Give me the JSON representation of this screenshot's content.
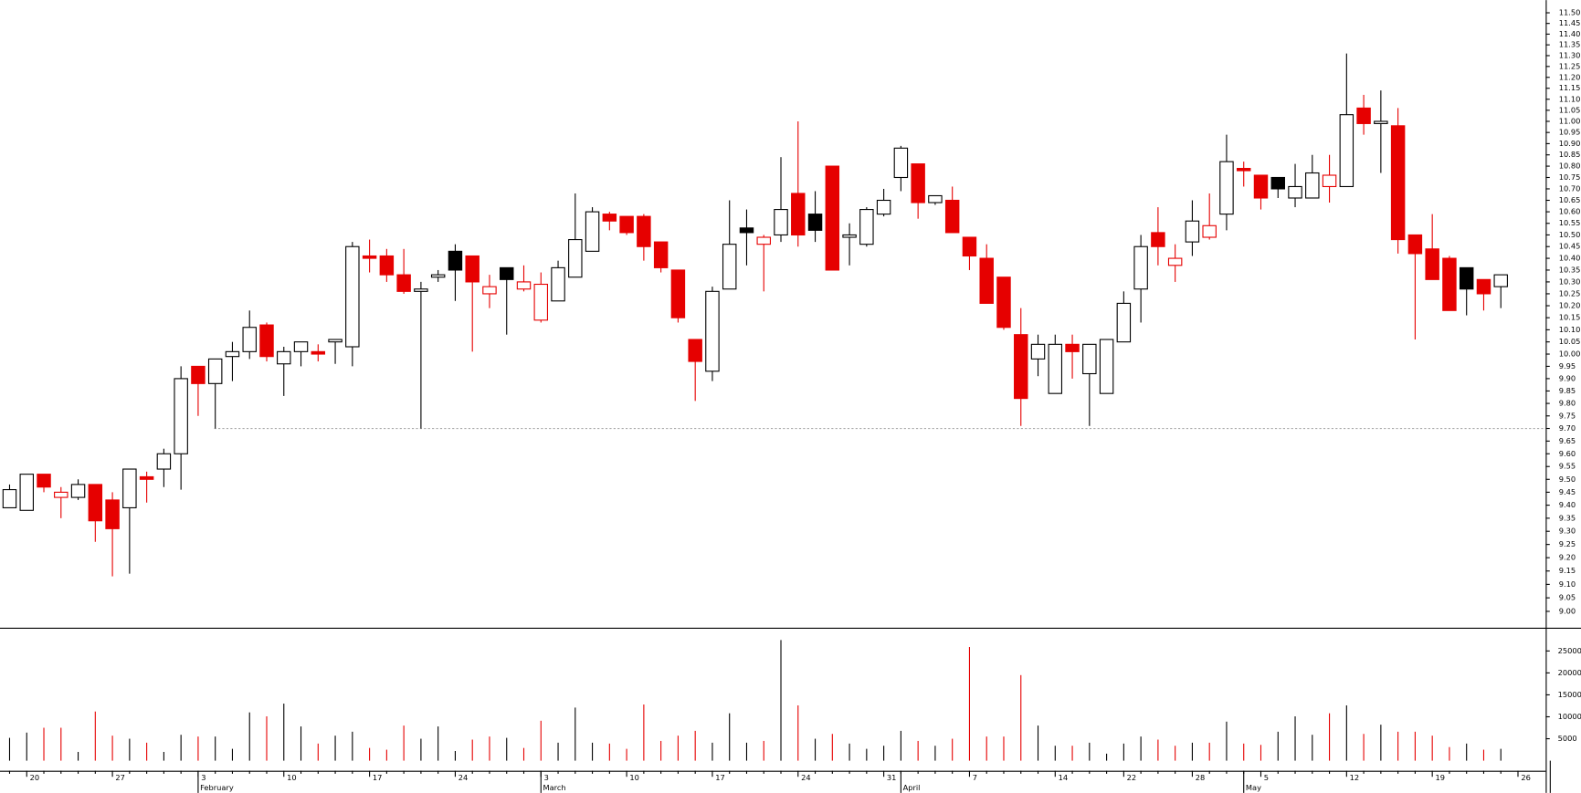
{
  "chart_data": {
    "type": "candlestick",
    "log_scale": true,
    "categories": [
      null,
      "20",
      null,
      null,
      null,
      null,
      "27",
      null,
      null,
      null,
      null,
      "3",
      null,
      null,
      null,
      null,
      "10",
      null,
      null,
      null,
      null,
      "17",
      null,
      null,
      null,
      null,
      "24",
      null,
      null,
      null,
      null,
      "3",
      null,
      null,
      null,
      null,
      "10",
      null,
      null,
      null,
      null,
      "17",
      null,
      null,
      null,
      null,
      "24",
      null,
      null,
      null,
      null,
      "31",
      null,
      null,
      null,
      null,
      "7",
      null,
      null,
      null,
      null,
      "14",
      null,
      null,
      null,
      "22",
      null,
      null,
      null,
      "28",
      null,
      null,
      null,
      "5",
      null,
      null,
      null,
      null,
      "12",
      null,
      null,
      null,
      null,
      "19",
      null,
      null,
      null,
      null,
      "26"
    ],
    "months": [
      null,
      null,
      null,
      null,
      null,
      null,
      null,
      null,
      null,
      null,
      null,
      "February",
      null,
      null,
      null,
      null,
      null,
      null,
      null,
      null,
      null,
      null,
      null,
      null,
      null,
      null,
      null,
      null,
      null,
      null,
      null,
      "March",
      null,
      null,
      null,
      null,
      null,
      null,
      null,
      null,
      null,
      null,
      null,
      null,
      null,
      null,
      null,
      null,
      null,
      null,
      null,
      null,
      "April",
      null,
      null,
      null,
      null,
      null,
      null,
      null,
      null,
      null,
      null,
      null,
      null,
      null,
      null,
      null,
      null,
      null,
      null,
      null,
      "May",
      null,
      null,
      null,
      null,
      null,
      null,
      null,
      null,
      null,
      null,
      null,
      null,
      null,
      null,
      null,
      null
    ],
    "open": [
      9.39,
      9.38,
      9.52,
      9.43,
      9.43,
      9.48,
      9.42,
      9.39,
      9.51,
      9.54,
      9.6,
      9.95,
      9.88,
      9.99,
      10.01,
      10.12,
      9.96,
      10.01,
      10.01,
      10.05,
      10.03,
      10.41,
      10.41,
      10.33,
      10.26,
      10.32,
      10.43,
      10.41,
      10.25,
      10.36,
      10.27,
      10.14,
      10.22,
      10.32,
      10.43,
      10.59,
      10.58,
      10.58,
      10.47,
      10.35,
      10.06,
      9.93,
      10.27,
      10.53,
      10.46,
      10.5,
      10.68,
      10.59,
      10.8,
      10.49,
      10.46,
      10.59,
      10.75,
      10.81,
      10.64,
      10.65,
      10.49,
      10.4,
      10.32,
      10.08,
      9.98,
      9.84,
      10.04,
      9.92,
      9.84,
      10.05,
      10.27,
      10.51,
      10.37,
      10.47,
      10.49,
      10.59,
      10.79,
      10.76,
      10.75,
      10.66,
      10.66,
      10.71,
      10.71,
      11.06,
      10.99,
      10.98,
      10.5,
      10.44,
      10.4,
      10.36,
      10.31,
      10.28,
      null
    ],
    "high": [
      9.48,
      9.52,
      9.52,
      9.47,
      9.5,
      9.48,
      9.45,
      9.54,
      9.53,
      9.62,
      9.95,
      9.95,
      9.98,
      10.05,
      10.18,
      10.13,
      10.03,
      10.05,
      10.04,
      10.06,
      10.47,
      10.48,
      10.44,
      10.44,
      10.3,
      10.35,
      10.46,
      10.41,
      10.33,
      10.36,
      10.37,
      10.34,
      10.39,
      10.68,
      10.62,
      10.6,
      10.58,
      10.59,
      10.47,
      10.35,
      10.06,
      10.28,
      10.65,
      10.61,
      10.5,
      10.84,
      11.0,
      10.69,
      10.8,
      10.55,
      10.62,
      10.7,
      10.89,
      10.81,
      10.67,
      10.71,
      10.49,
      10.46,
      10.32,
      10.19,
      10.08,
      10.08,
      10.08,
      10.04,
      10.06,
      10.26,
      10.5,
      10.62,
      10.46,
      10.65,
      10.68,
      10.94,
      10.82,
      10.76,
      10.75,
      10.81,
      10.85,
      10.85,
      11.31,
      11.12,
      11.14,
      11.06,
      10.5,
      10.59,
      10.41,
      10.36,
      10.31,
      10.33,
      null
    ],
    "low": [
      9.39,
      9.38,
      9.45,
      9.35,
      9.42,
      9.26,
      9.13,
      9.14,
      9.41,
      9.47,
      9.46,
      9.75,
      9.7,
      9.89,
      9.98,
      9.97,
      9.83,
      9.95,
      9.97,
      9.96,
      9.95,
      10.34,
      10.3,
      10.25,
      9.7,
      10.3,
      10.22,
      10.01,
      10.19,
      10.08,
      10.26,
      10.13,
      10.22,
      10.32,
      10.43,
      10.52,
      10.5,
      10.39,
      10.34,
      10.13,
      9.81,
      9.89,
      10.27,
      10.37,
      10.26,
      10.47,
      10.45,
      10.47,
      10.35,
      10.37,
      10.45,
      10.58,
      10.69,
      10.57,
      10.63,
      10.51,
      10.35,
      10.21,
      10.1,
      9.71,
      9.91,
      9.84,
      9.9,
      9.71,
      9.84,
      10.05,
      10.13,
      10.37,
      10.3,
      10.41,
      10.48,
      10.52,
      10.71,
      10.61,
      10.66,
      10.62,
      10.66,
      10.64,
      10.71,
      10.94,
      10.77,
      10.42,
      10.06,
      10.31,
      10.18,
      10.16,
      10.18,
      10.19,
      null
    ],
    "close": [
      9.46,
      9.52,
      9.47,
      9.45,
      9.48,
      9.34,
      9.31,
      9.54,
      9.5,
      9.6,
      9.9,
      9.88,
      9.98,
      10.01,
      10.11,
      9.99,
      10.01,
      10.05,
      10.0,
      10.06,
      10.45,
      10.4,
      10.33,
      10.26,
      10.27,
      10.33,
      10.35,
      10.3,
      10.28,
      10.31,
      10.3,
      10.29,
      10.36,
      10.48,
      10.6,
      10.56,
      10.51,
      10.45,
      10.36,
      10.15,
      9.97,
      10.26,
      10.46,
      10.51,
      10.49,
      10.61,
      10.5,
      10.52,
      10.35,
      10.5,
      10.61,
      10.65,
      10.88,
      10.64,
      10.67,
      10.51,
      10.41,
      10.21,
      10.11,
      9.82,
      10.04,
      10.04,
      10.01,
      10.04,
      10.06,
      10.21,
      10.45,
      10.45,
      10.4,
      10.56,
      10.54,
      10.82,
      10.78,
      10.66,
      10.7,
      10.71,
      10.77,
      10.76,
      11.03,
      10.99,
      11.0,
      10.48,
      10.42,
      10.31,
      10.18,
      10.27,
      10.25,
      10.33,
      null
    ],
    "colors": [
      "#000000",
      "#000000",
      "#e60000",
      "#e60000",
      "#000000",
      "#e60000",
      "#e60000",
      "#000000",
      "#e60000",
      "#000000",
      "#000000",
      "#e60000",
      "#000000",
      "#000000",
      "#000000",
      "#e60000",
      "#000000",
      "#000000",
      "#e60000",
      "#000000",
      "#000000",
      "#e60000",
      "#e60000",
      "#e60000",
      "#000000",
      "#000000",
      "#000000",
      "#e60000",
      "#e60000",
      "#000000",
      "#e60000",
      "#e60000",
      "#000000",
      "#000000",
      "#000000",
      "#e60000",
      "#e60000",
      "#e60000",
      "#e60000",
      "#e60000",
      "#e60000",
      "#000000",
      "#000000",
      "#000000",
      "#e60000",
      "#000000",
      "#e60000",
      "#000000",
      "#e60000",
      "#000000",
      "#000000",
      "#000000",
      "#000000",
      "#e60000",
      "#000000",
      "#e60000",
      "#e60000",
      "#e60000",
      "#e60000",
      "#e60000",
      "#000000",
      "#000000",
      "#e60000",
      "#000000",
      "#000000",
      "#000000",
      "#000000",
      "#e60000",
      "#e60000",
      "#000000",
      "#e60000",
      "#000000",
      "#e60000",
      "#e60000",
      "#000000",
      "#000000",
      "#000000",
      "#e60000",
      "#000000",
      "#e60000",
      "#000000",
      "#e60000",
      "#e60000",
      "#e60000",
      "#e60000",
      "#000000",
      "#e60000",
      "#000000",
      null
    ],
    "hline": 9.7,
    "ylim": [
      8.94,
      11.56
    ],
    "yticks": [
      {
        "value": 9,
        "label": "9.00"
      },
      9.05,
      {
        "value": 9.1,
        "label": "9.10"
      },
      9.15,
      {
        "value": 9.2,
        "label": "9.20"
      },
      9.25,
      {
        "value": 9.3,
        "label": "9.30"
      },
      9.35,
      {
        "value": 9.4,
        "label": "9.40"
      },
      9.45,
      {
        "value": 9.5,
        "label": "9.50"
      },
      9.55,
      {
        "value": 9.6,
        "label": "9.60"
      },
      9.65,
      {
        "value": 9.7,
        "label": "9.70"
      },
      9.75,
      {
        "value": 9.8,
        "label": "9.80"
      },
      9.85,
      {
        "value": 9.9,
        "label": "9.90"
      },
      9.95,
      {
        "value": 10,
        "label": "10.00"
      },
      10.05,
      {
        "value": 10.1,
        "label": "10.10"
      },
      10.15,
      {
        "value": 10.2,
        "label": "10.20"
      },
      10.25,
      {
        "value": 10.3,
        "label": "10.30"
      },
      10.35,
      {
        "value": 10.4,
        "label": "10.40"
      },
      10.45,
      {
        "value": 10.5,
        "label": "10.50"
      },
      10.55,
      {
        "value": 10.6,
        "label": "10.60"
      },
      10.65,
      {
        "value": 10.7,
        "label": "10.70"
      },
      10.75,
      {
        "value": 10.8,
        "label": "10.80"
      },
      10.85,
      {
        "value": 10.9,
        "label": "10.90"
      },
      10.95,
      {
        "value": 11,
        "label": "11.00"
      },
      11.05,
      {
        "value": 11.1,
        "label": "11.10"
      },
      11.15,
      {
        "value": 11.2,
        "label": "11.20"
      },
      11.25,
      {
        "value": 11.3,
        "label": "11.30"
      },
      11.35,
      {
        "value": 11.4,
        "label": "11.40"
      },
      11.45,
      {
        "value": 11.5,
        "label": "11.50"
      }
    ],
    "volume": {
      "values": [
        5200,
        6400,
        7500,
        7500,
        2000,
        11200,
        5700,
        5000,
        4100,
        2000,
        5900,
        5500,
        5500,
        2700,
        11000,
        10100,
        13000,
        7800,
        3900,
        5700,
        6600,
        2900,
        2500,
        8000,
        5000,
        7800,
        2200,
        4800,
        5500,
        5200,
        2900,
        9100,
        4100,
        12100,
        4100,
        3900,
        2700,
        12800,
        4500,
        5700,
        6800,
        4100,
        10800,
        4100,
        4500,
        27500,
        12600,
        5000,
        6100,
        3900,
        2700,
        3400,
        6800,
        4500,
        3400,
        5000,
        25900,
        5500,
        5500,
        19500,
        8000,
        3400,
        3400,
        4100,
        1600,
        3900,
        5500,
        4800,
        3400,
        4100,
        4100,
        8900,
        3900,
        3600,
        6600,
        10100,
        5900,
        10800,
        12600,
        6100,
        8200,
        6600,
        6600,
        5700,
        3100,
        3900,
        2500,
        2700,
        null
      ],
      "ylim": [
        0,
        30300
      ],
      "yticks": [
        5000,
        10000,
        15000,
        20000,
        25000
      ]
    }
  }
}
